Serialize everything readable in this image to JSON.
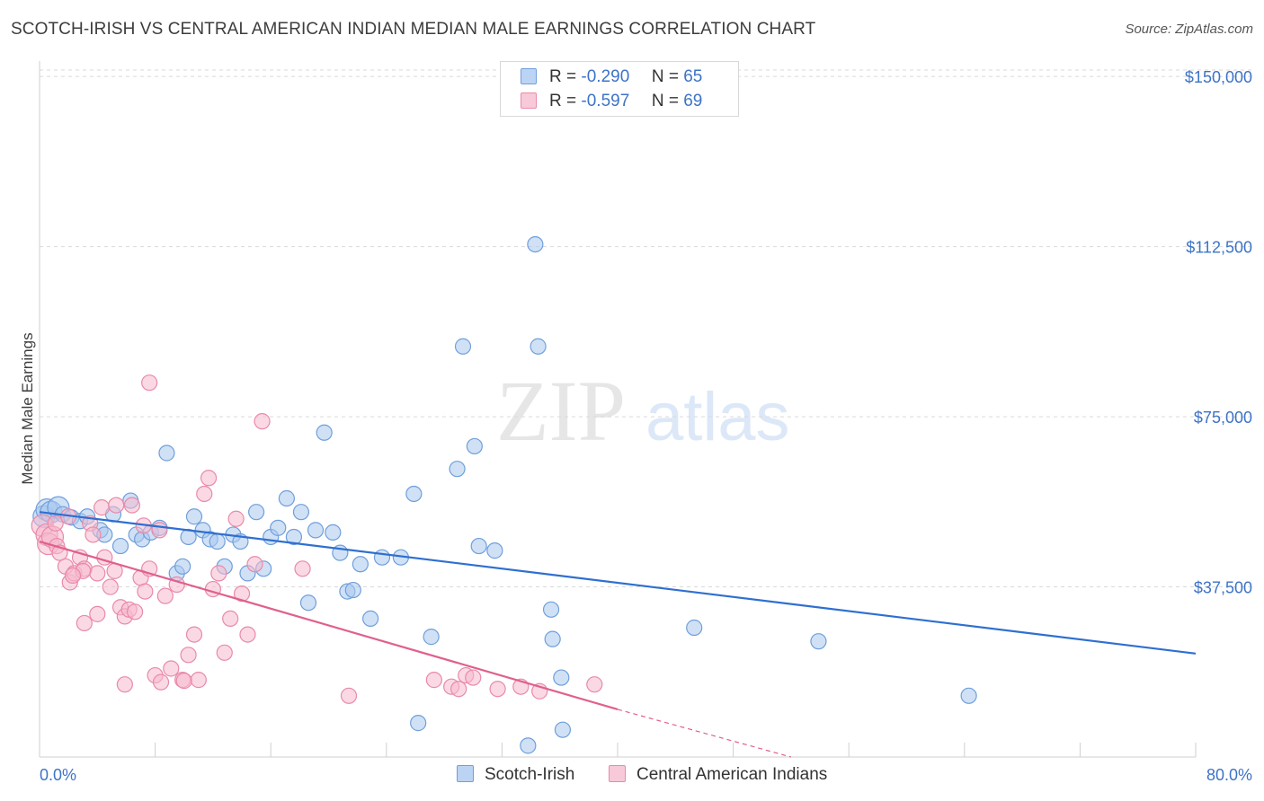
{
  "header": {
    "title": "SCOTCH-IRISH VS CENTRAL AMERICAN INDIAN MEDIAN MALE EARNINGS CORRELATION CHART",
    "source": "Source: ZipAtlas.com"
  },
  "watermark": {
    "part1": "ZIP",
    "part2": "atlas"
  },
  "legend": {
    "rows": [
      {
        "r_label": "R =",
        "r_value": "-0.290",
        "n_label": "N =",
        "n_value": "65"
      },
      {
        "r_label": "R =",
        "r_value": "-0.597",
        "n_label": "N =",
        "n_value": "69"
      }
    ]
  },
  "bottom_legend": [
    {
      "label": "Scotch-Irish"
    },
    {
      "label": "Central American Indians"
    }
  ],
  "colors": {
    "series1_fill": "#a9c8ef",
    "series1_stroke": "#6f9fdc",
    "series1_line": "#2e6fd0",
    "series2_fill": "#f6b9cd",
    "series2_stroke": "#e98aa8",
    "series2_line": "#e0608c",
    "axis_text": "#3d73c8",
    "grid": "#d9d9d9"
  },
  "chart_data": {
    "type": "scatter",
    "title": "SCOTCH-IRISH VS CENTRAL AMERICAN INDIAN MEDIAN MALE EARNINGS CORRELATION CHART",
    "xlabel": "",
    "ylabel": "Median Male Earnings",
    "xlim": [
      0,
      80
    ],
    "ylim": [
      0,
      153000
    ],
    "x_tick_labels": [
      "0.0%",
      "80.0%"
    ],
    "y_ticks": [
      {
        "value": 37500,
        "label": "$37,500"
      },
      {
        "value": 75000,
        "label": "$75,000"
      },
      {
        "value": 112500,
        "label": "$112,500"
      },
      {
        "value": 150000,
        "label": "$150,000"
      }
    ],
    "grid": "horizontal dashed",
    "legend_position": "top-center",
    "series": [
      {
        "name": "Scotch-Irish",
        "trend": {
          "x": [
            0,
            80
          ],
          "y": [
            54000,
            22800
          ]
        },
        "points": [
          [
            0.3,
            53000
          ],
          [
            0.5,
            54500
          ],
          [
            0.8,
            54000
          ],
          [
            1.3,
            55000
          ],
          [
            1.6,
            53500
          ],
          [
            2.2,
            52800
          ],
          [
            2.8,
            52000
          ],
          [
            3.3,
            53000
          ],
          [
            4.2,
            50000
          ],
          [
            4.5,
            49000
          ],
          [
            5.1,
            53500
          ],
          [
            5.6,
            46500
          ],
          [
            6.3,
            56500
          ],
          [
            6.7,
            49000
          ],
          [
            7.1,
            48000
          ],
          [
            7.7,
            49500
          ],
          [
            8.3,
            50500
          ],
          [
            8.8,
            67000
          ],
          [
            9.5,
            40500
          ],
          [
            9.9,
            42000
          ],
          [
            10.3,
            48500
          ],
          [
            10.7,
            53000
          ],
          [
            11.3,
            50000
          ],
          [
            11.8,
            48000
          ],
          [
            12.3,
            47500
          ],
          [
            12.8,
            42000
          ],
          [
            13.4,
            49000
          ],
          [
            13.9,
            47500
          ],
          [
            14.4,
            40500
          ],
          [
            15.0,
            54000
          ],
          [
            15.5,
            41500
          ],
          [
            16.0,
            48500
          ],
          [
            16.5,
            50500
          ],
          [
            17.1,
            57000
          ],
          [
            17.6,
            48500
          ],
          [
            18.1,
            54000
          ],
          [
            18.6,
            34000
          ],
          [
            19.1,
            50000
          ],
          [
            19.7,
            71500
          ],
          [
            20.3,
            49500
          ],
          [
            20.8,
            45000
          ],
          [
            21.3,
            36500
          ],
          [
            21.7,
            36800
          ],
          [
            22.2,
            42500
          ],
          [
            22.9,
            30500
          ],
          [
            23.7,
            44000
          ],
          [
            25.0,
            44000
          ],
          [
            25.9,
            58000
          ],
          [
            27.1,
            26500
          ],
          [
            28.9,
            63500
          ],
          [
            29.3,
            90500
          ],
          [
            30.1,
            68500
          ],
          [
            30.4,
            46500
          ],
          [
            31.5,
            45500
          ],
          [
            34.3,
            113000
          ],
          [
            34.5,
            90500
          ],
          [
            35.4,
            32500
          ],
          [
            35.5,
            26000
          ],
          [
            36.1,
            17500
          ],
          [
            36.2,
            6000
          ],
          [
            26.2,
            7500
          ],
          [
            33.8,
            2500
          ],
          [
            45.3,
            28500
          ],
          [
            53.9,
            25500
          ],
          [
            64.3,
            13500
          ]
        ]
      },
      {
        "name": "Central American Indians",
        "trend": {
          "x": [
            0,
            40
          ],
          "y": [
            47500,
            10500
          ]
        },
        "trend_dashed_extension": {
          "x": [
            40,
            52
          ],
          "y": [
            10500,
            0
          ]
        },
        "points": [
          [
            0.2,
            51000
          ],
          [
            0.5,
            49000
          ],
          [
            0.6,
            47000
          ],
          [
            0.9,
            48500
          ],
          [
            1.2,
            46500
          ],
          [
            1.4,
            45000
          ],
          [
            1.8,
            42000
          ],
          [
            2.1,
            38500
          ],
          [
            2.4,
            40500
          ],
          [
            2.8,
            44000
          ],
          [
            3.1,
            41500
          ],
          [
            3.5,
            51500
          ],
          [
            3.7,
            49000
          ],
          [
            4.0,
            40500
          ],
          [
            4.5,
            44000
          ],
          [
            4.9,
            37500
          ],
          [
            5.2,
            41000
          ],
          [
            5.6,
            33000
          ],
          [
            5.9,
            31000
          ],
          [
            6.2,
            32500
          ],
          [
            6.6,
            32000
          ],
          [
            7.0,
            39500
          ],
          [
            7.3,
            36500
          ],
          [
            7.6,
            41500
          ],
          [
            8.0,
            18000
          ],
          [
            8.4,
            16500
          ],
          [
            8.7,
            35500
          ],
          [
            9.1,
            19500
          ],
          [
            9.5,
            38000
          ],
          [
            9.9,
            17000
          ],
          [
            10.3,
            22500
          ],
          [
            10.7,
            27000
          ],
          [
            11.0,
            17000
          ],
          [
            11.4,
            58000
          ],
          [
            11.7,
            61500
          ],
          [
            12.0,
            37000
          ],
          [
            12.4,
            40500
          ],
          [
            12.8,
            23000
          ],
          [
            13.2,
            30500
          ],
          [
            13.6,
            52500
          ],
          [
            14.0,
            36000
          ],
          [
            14.4,
            27000
          ],
          [
            14.9,
            42500
          ],
          [
            15.4,
            74000
          ],
          [
            7.6,
            82500
          ],
          [
            18.2,
            41500
          ],
          [
            4.3,
            55000
          ],
          [
            5.3,
            55500
          ],
          [
            3.1,
            29500
          ],
          [
            4.0,
            31500
          ],
          [
            3.0,
            41000
          ],
          [
            2.3,
            40000
          ],
          [
            6.4,
            55500
          ],
          [
            7.2,
            51000
          ],
          [
            8.3,
            50000
          ],
          [
            1.1,
            51500
          ],
          [
            2.0,
            53000
          ],
          [
            27.3,
            17000
          ],
          [
            28.5,
            15500
          ],
          [
            29.0,
            15000
          ],
          [
            29.5,
            18000
          ],
          [
            30.0,
            17500
          ],
          [
            31.7,
            15000
          ],
          [
            33.3,
            15500
          ],
          [
            34.6,
            14500
          ],
          [
            38.4,
            16000
          ],
          [
            21.4,
            13500
          ],
          [
            10.0,
            16800
          ],
          [
            5.9,
            16000
          ]
        ]
      }
    ]
  }
}
